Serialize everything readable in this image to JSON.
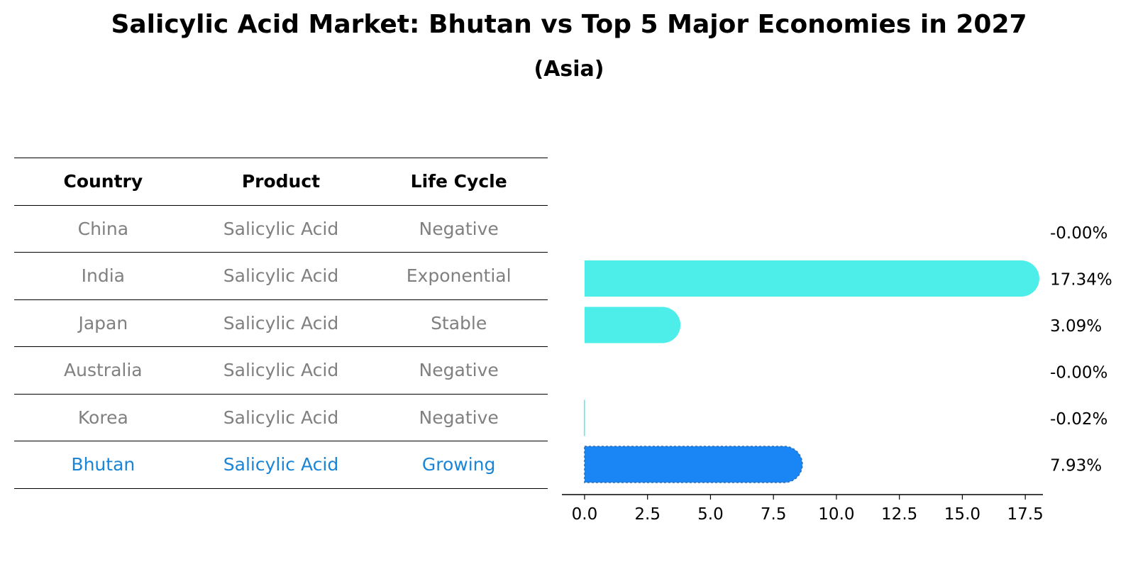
{
  "title": "Salicylic Acid Market: Bhutan vs Top 5 Major Economies in 2027",
  "subtitle": "(Asia)",
  "table": {
    "headers": [
      "Country",
      "Product",
      "Life Cycle"
    ],
    "rows": [
      {
        "country": "China",
        "product": "Salicylic Acid",
        "life_cycle": "Negative"
      },
      {
        "country": "India",
        "product": "Salicylic Acid",
        "life_cycle": "Exponential"
      },
      {
        "country": "Japan",
        "product": "Salicylic Acid",
        "life_cycle": "Stable"
      },
      {
        "country": "Australia",
        "product": "Salicylic Acid",
        "life_cycle": "Negative"
      },
      {
        "country": "Korea",
        "product": "Salicylic Acid",
        "life_cycle": "Negative"
      },
      {
        "country": "Bhutan",
        "product": "Salicylic Acid",
        "life_cycle": "Growing"
      }
    ]
  },
  "chart_data": {
    "type": "bar",
    "orientation": "horizontal",
    "categories": [
      "China",
      "India",
      "Japan",
      "Australia",
      "Korea",
      "Bhutan"
    ],
    "values": [
      -0.0,
      17.34,
      3.09,
      -0.0,
      -0.02,
      7.93
    ],
    "labels": [
      "-0.00%",
      "17.34%",
      "3.09%",
      "-0.00%",
      "-0.02%",
      "7.93%"
    ],
    "xlim": [
      -0.9,
      18.2
    ],
    "xticks": [
      0.0,
      2.5,
      5.0,
      7.5,
      10.0,
      12.5,
      15.0,
      17.5
    ],
    "xtick_labels": [
      "0.0",
      "2.5",
      "5.0",
      "7.5",
      "10.0",
      "12.5",
      "15.0",
      "17.5"
    ],
    "highlight": "Bhutan",
    "colors": {
      "default": "#4deeea",
      "highlight": "#1a85f5"
    },
    "grid": false
  }
}
